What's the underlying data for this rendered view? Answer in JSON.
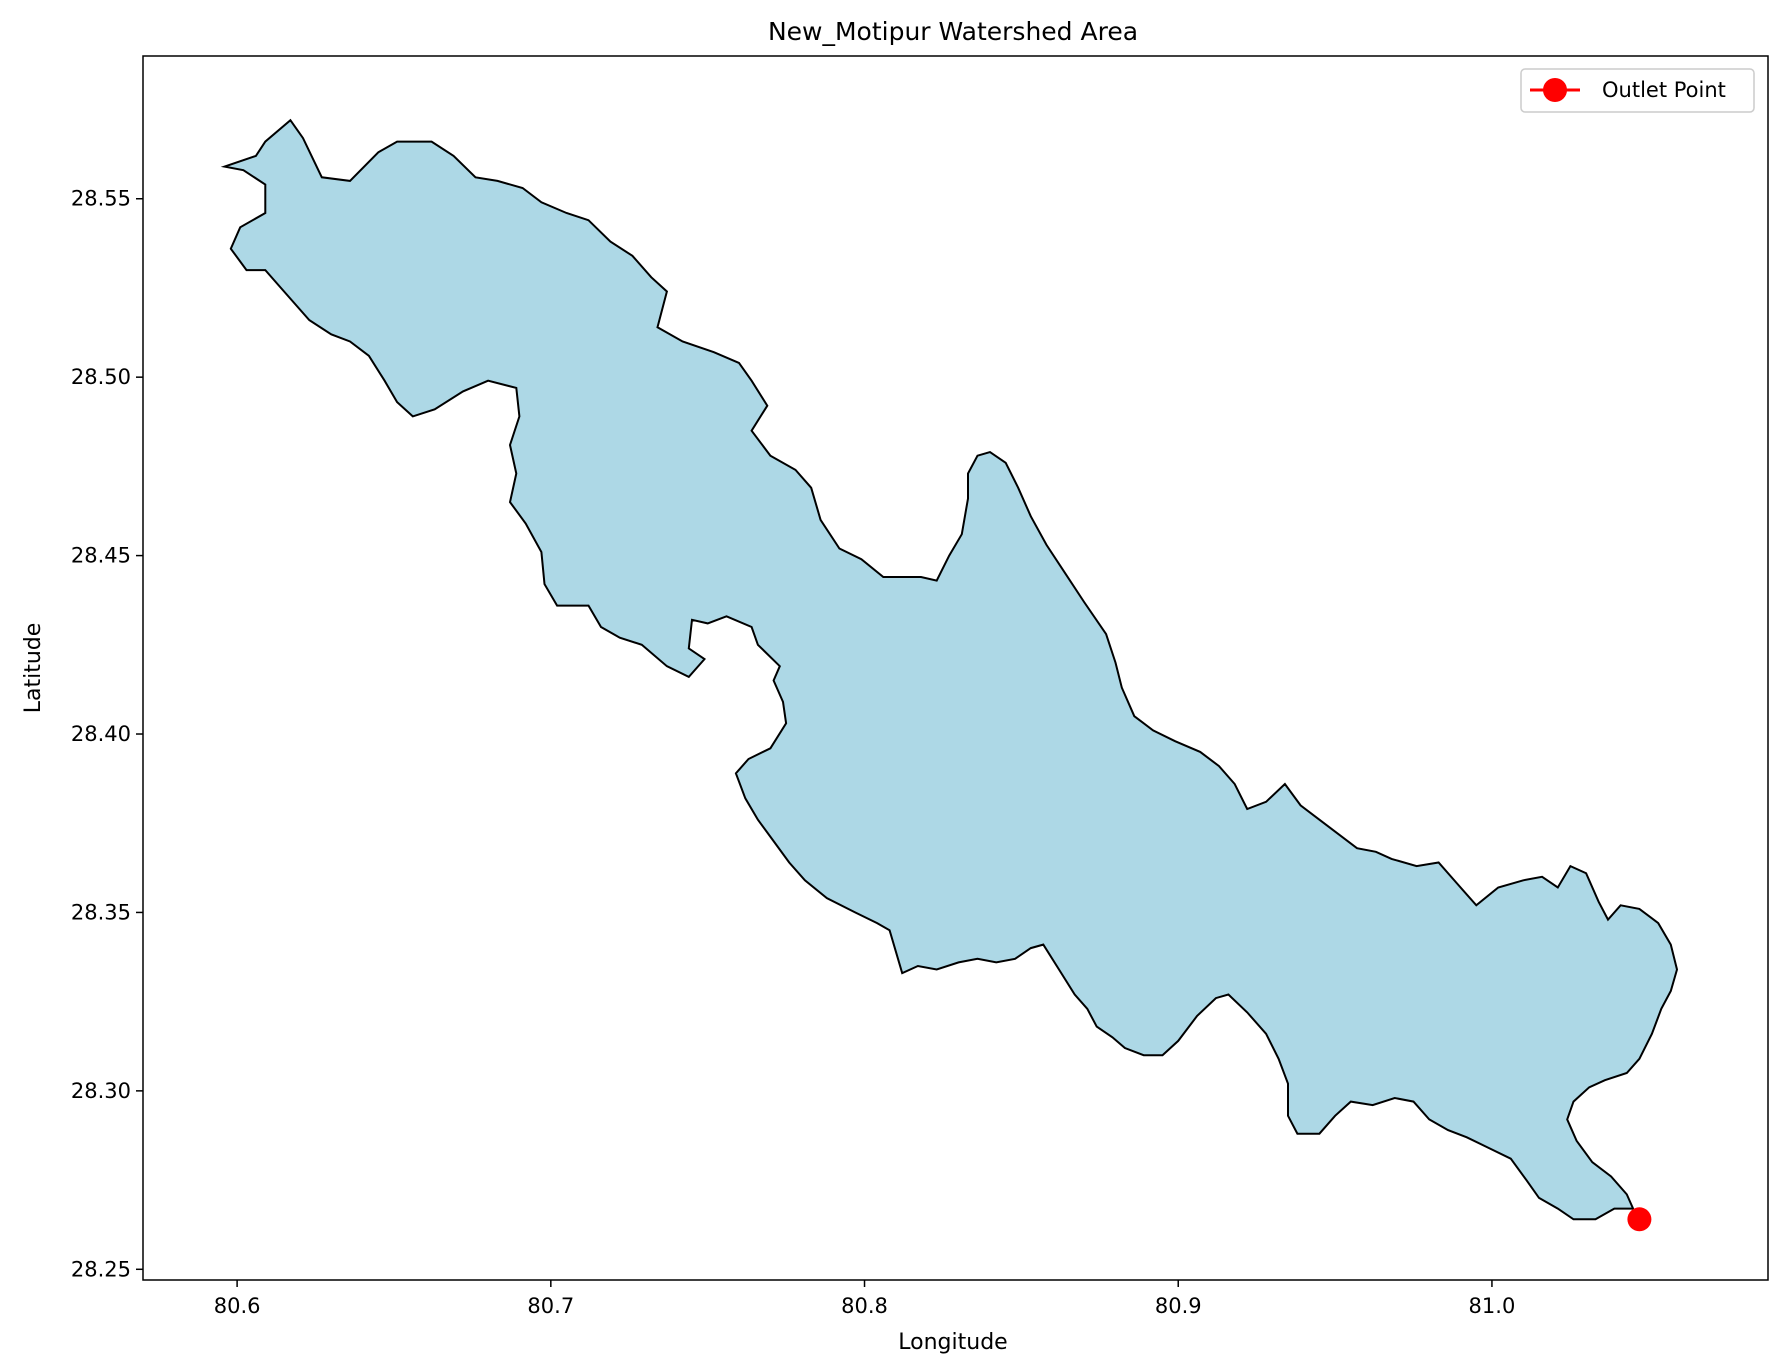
{
  "chart_data": {
    "type": "map",
    "title": "New_Motipur Watershed Area",
    "xlabel": "Longitude",
    "ylabel": "Latitude",
    "xlim": [
      80.57,
      81.088
    ],
    "ylim": [
      28.247,
      28.59
    ],
    "xticks": [
      80.6,
      80.7,
      80.8,
      80.9,
      81.0
    ],
    "xtick_labels": [
      "80.6",
      "80.7",
      "80.8",
      "80.9",
      "81.0"
    ],
    "yticks": [
      28.25,
      28.3,
      28.35,
      28.4,
      28.45,
      28.5,
      28.55
    ],
    "ytick_labels": [
      "28.25",
      "28.30",
      "28.35",
      "28.40",
      "28.45",
      "28.50",
      "28.55"
    ],
    "grid": false,
    "legend": {
      "position": "upper-right",
      "entries": [
        "Outlet Point"
      ]
    },
    "colors": {
      "watershed_fill": "#add8e6",
      "watershed_edge": "#000000",
      "outlet": "#ff0000"
    },
    "watershed_boundary": [
      [
        80.596,
        28.559
      ],
      [
        80.606,
        28.562
      ],
      [
        80.609,
        28.566
      ],
      [
        80.617,
        28.572
      ],
      [
        80.621,
        28.567
      ],
      [
        80.627,
        28.556
      ],
      [
        80.636,
        28.555
      ],
      [
        80.645,
        28.563
      ],
      [
        80.651,
        28.566
      ],
      [
        80.662,
        28.566
      ],
      [
        80.669,
        28.562
      ],
      [
        80.676,
        28.556
      ],
      [
        80.683,
        28.555
      ],
      [
        80.691,
        28.553
      ],
      [
        80.697,
        28.549
      ],
      [
        80.705,
        28.546
      ],
      [
        80.712,
        28.544
      ],
      [
        80.719,
        28.538
      ],
      [
        80.726,
        28.534
      ],
      [
        80.732,
        28.528
      ],
      [
        80.737,
        28.524
      ],
      [
        80.734,
        28.514
      ],
      [
        80.742,
        28.51
      ],
      [
        80.752,
        28.507
      ],
      [
        80.76,
        28.504
      ],
      [
        80.764,
        28.499
      ],
      [
        80.769,
        28.492
      ],
      [
        80.764,
        28.485
      ],
      [
        80.77,
        28.478
      ],
      [
        80.778,
        28.474
      ],
      [
        80.783,
        28.469
      ],
      [
        80.786,
        28.46
      ],
      [
        80.792,
        28.452
      ],
      [
        80.799,
        28.449
      ],
      [
        80.806,
        28.444
      ],
      [
        80.812,
        28.444
      ],
      [
        80.818,
        28.444
      ],
      [
        80.823,
        28.443
      ],
      [
        80.827,
        28.45
      ],
      [
        80.831,
        28.456
      ],
      [
        80.833,
        28.466
      ],
      [
        80.833,
        28.473
      ],
      [
        80.836,
        28.478
      ],
      [
        80.84,
        28.479
      ],
      [
        80.845,
        28.476
      ],
      [
        80.849,
        28.469
      ],
      [
        80.853,
        28.461
      ],
      [
        80.858,
        28.453
      ],
      [
        80.864,
        28.445
      ],
      [
        80.87,
        28.437
      ],
      [
        80.877,
        28.428
      ],
      [
        80.88,
        28.42
      ],
      [
        80.882,
        28.413
      ],
      [
        80.886,
        28.405
      ],
      [
        80.892,
        28.401
      ],
      [
        80.899,
        28.398
      ],
      [
        80.907,
        28.395
      ],
      [
        80.913,
        28.391
      ],
      [
        80.918,
        28.386
      ],
      [
        80.922,
        28.379
      ],
      [
        80.928,
        28.381
      ],
      [
        80.934,
        28.386
      ],
      [
        80.939,
        28.38
      ],
      [
        80.945,
        28.376
      ],
      [
        80.951,
        28.372
      ],
      [
        80.957,
        28.368
      ],
      [
        80.963,
        28.367
      ],
      [
        80.968,
        28.365
      ],
      [
        80.976,
        28.363
      ],
      [
        80.983,
        28.364
      ],
      [
        80.989,
        28.358
      ],
      [
        80.995,
        28.352
      ],
      [
        81.002,
        28.357
      ],
      [
        81.01,
        28.359
      ],
      [
        81.016,
        28.36
      ],
      [
        81.021,
        28.357
      ],
      [
        81.025,
        28.363
      ],
      [
        81.03,
        28.361
      ],
      [
        81.034,
        28.353
      ],
      [
        81.037,
        28.348
      ],
      [
        81.041,
        28.352
      ],
      [
        81.047,
        28.351
      ],
      [
        81.053,
        28.347
      ],
      [
        81.057,
        28.341
      ],
      [
        81.059,
        28.334
      ],
      [
        81.057,
        28.328
      ],
      [
        81.054,
        28.323
      ],
      [
        81.051,
        28.316
      ],
      [
        81.047,
        28.309
      ],
      [
        81.043,
        28.305
      ],
      [
        81.036,
        28.303
      ],
      [
        81.031,
        28.301
      ],
      [
        81.026,
        28.297
      ],
      [
        81.024,
        28.292
      ],
      [
        81.027,
        28.286
      ],
      [
        81.032,
        28.28
      ],
      [
        81.038,
        28.276
      ],
      [
        81.043,
        28.271
      ],
      [
        81.045,
        28.267
      ],
      [
        81.039,
        28.267
      ],
      [
        81.033,
        28.264
      ],
      [
        81.026,
        28.264
      ],
      [
        81.021,
        28.267
      ],
      [
        81.015,
        28.27
      ],
      [
        81.011,
        28.275
      ],
      [
        81.006,
        28.281
      ],
      [
        80.999,
        28.284
      ],
      [
        80.992,
        28.287
      ],
      [
        80.986,
        28.289
      ],
      [
        80.98,
        28.292
      ],
      [
        80.975,
        28.297
      ],
      [
        80.969,
        28.298
      ],
      [
        80.962,
        28.296
      ],
      [
        80.955,
        28.297
      ],
      [
        80.95,
        28.293
      ],
      [
        80.945,
        28.288
      ],
      [
        80.938,
        28.288
      ],
      [
        80.935,
        28.293
      ],
      [
        80.935,
        28.302
      ],
      [
        80.932,
        28.309
      ],
      [
        80.928,
        28.316
      ],
      [
        80.922,
        28.322
      ],
      [
        80.916,
        28.327
      ],
      [
        80.912,
        28.326
      ],
      [
        80.906,
        28.321
      ],
      [
        80.9,
        28.314
      ],
      [
        80.895,
        28.31
      ],
      [
        80.889,
        28.31
      ],
      [
        80.883,
        28.312
      ],
      [
        80.879,
        28.315
      ],
      [
        80.874,
        28.318
      ],
      [
        80.871,
        28.323
      ],
      [
        80.867,
        28.327
      ],
      [
        80.862,
        28.334
      ],
      [
        80.857,
        28.341
      ],
      [
        80.853,
        28.34
      ],
      [
        80.848,
        28.337
      ],
      [
        80.842,
        28.336
      ],
      [
        80.836,
        28.337
      ],
      [
        80.83,
        28.336
      ],
      [
        80.823,
        28.334
      ],
      [
        80.817,
        28.335
      ],
      [
        80.812,
        28.333
      ],
      [
        80.81,
        28.339
      ],
      [
        80.808,
        28.345
      ],
      [
        80.804,
        28.347
      ],
      [
        80.797,
        28.35
      ],
      [
        80.788,
        28.354
      ],
      [
        80.781,
        28.359
      ],
      [
        80.776,
        28.364
      ],
      [
        80.771,
        28.37
      ],
      [
        80.766,
        28.376
      ],
      [
        80.762,
        28.382
      ],
      [
        80.759,
        28.389
      ],
      [
        80.763,
        28.393
      ],
      [
        80.77,
        28.396
      ],
      [
        80.775,
        28.403
      ],
      [
        80.774,
        28.409
      ],
      [
        80.771,
        28.415
      ],
      [
        80.773,
        28.419
      ],
      [
        80.766,
        28.425
      ],
      [
        80.764,
        28.43
      ],
      [
        80.756,
        28.433
      ],
      [
        80.75,
        28.431
      ],
      [
        80.745,
        28.432
      ],
      [
        80.744,
        28.424
      ],
      [
        80.749,
        28.421
      ],
      [
        80.744,
        28.416
      ],
      [
        80.737,
        28.419
      ],
      [
        80.729,
        28.425
      ],
      [
        80.722,
        28.427
      ],
      [
        80.716,
        28.43
      ],
      [
        80.712,
        28.436
      ],
      [
        80.702,
        28.436
      ],
      [
        80.698,
        28.442
      ],
      [
        80.697,
        28.451
      ],
      [
        80.692,
        28.459
      ],
      [
        80.687,
        28.465
      ],
      [
        80.689,
        28.473
      ],
      [
        80.687,
        28.481
      ],
      [
        80.69,
        28.489
      ],
      [
        80.689,
        28.497
      ],
      [
        80.68,
        28.499
      ],
      [
        80.672,
        28.496
      ],
      [
        80.663,
        28.491
      ],
      [
        80.656,
        28.489
      ],
      [
        80.651,
        28.493
      ],
      [
        80.647,
        28.499
      ],
      [
        80.642,
        28.506
      ],
      [
        80.636,
        28.51
      ],
      [
        80.63,
        28.512
      ],
      [
        80.623,
        28.516
      ],
      [
        80.614,
        28.525
      ],
      [
        80.609,
        28.53
      ],
      [
        80.603,
        28.53
      ],
      [
        80.598,
        28.536
      ],
      [
        80.601,
        28.542
      ],
      [
        80.609,
        28.546
      ],
      [
        80.609,
        28.554
      ],
      [
        80.602,
        28.558
      ]
    ],
    "outlet_point": {
      "x": 81.047,
      "y": 28.264,
      "label": "Outlet Point"
    }
  }
}
